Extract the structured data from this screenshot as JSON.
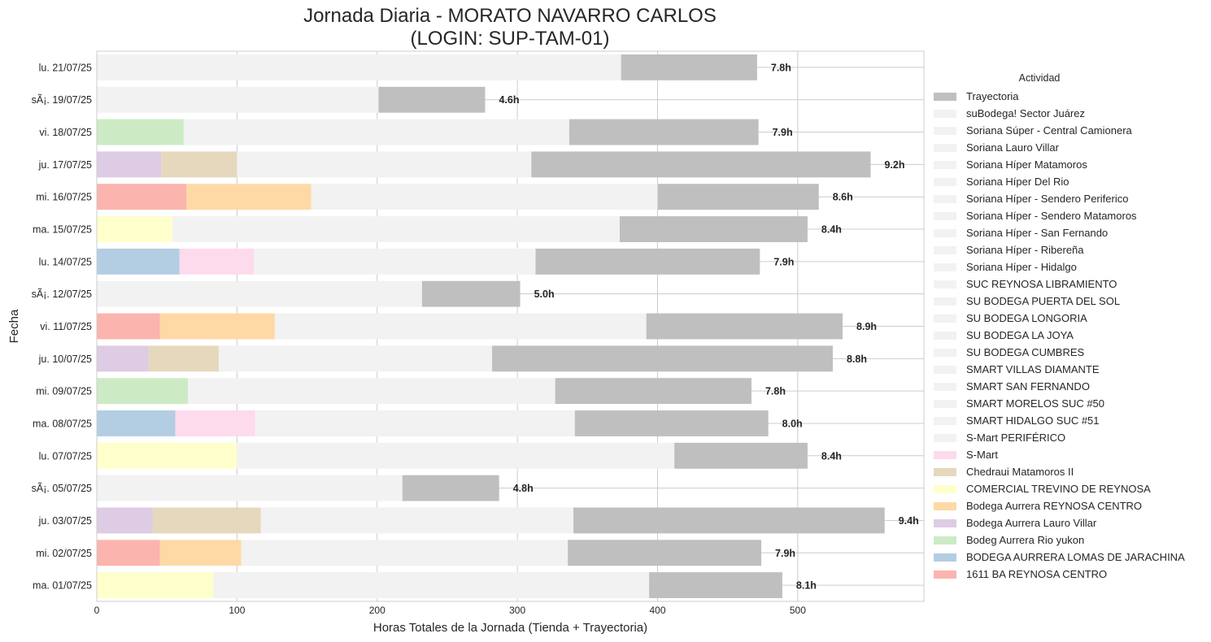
{
  "chart_data": {
    "type": "bar",
    "orientation": "horizontal",
    "stacked": true,
    "title_line1": "Jornada Diaria - MORATO NAVARRO CARLOS",
    "title_line2": "(LOGIN: SUP-TAM-01)",
    "xlabel": "Horas Totales de la Jornada (Tienda + Trayectoria)",
    "ylabel": "Fecha",
    "xlim": [
      0,
      590
    ],
    "xticks": [
      0,
      100,
      200,
      300,
      400,
      500
    ],
    "grid": true,
    "legend_position": "right",
    "legend_title": "Actividad",
    "categories": [
      "lu. 21/07/25",
      "sÃ¡. 19/07/25",
      "vi. 18/07/25",
      "ju. 17/07/25",
      "mi. 16/07/25",
      "ma. 15/07/25",
      "lu. 14/07/25",
      "sÃ¡. 12/07/25",
      "vi. 11/07/25",
      "ju. 10/07/25",
      "mi. 09/07/25",
      "ma. 08/07/25",
      "lu. 07/07/25",
      "sÃ¡. 05/07/25",
      "ju. 03/07/25",
      "mi. 02/07/25",
      "ma. 01/07/25"
    ],
    "series": [
      {
        "name": "Trayectoria",
        "color": "#bfbfbf"
      },
      {
        "name": "suBodega! Sector Juárez",
        "color": "#f2f2f2"
      },
      {
        "name": "Soriana Súper - Central Camionera",
        "color": "#f2f2f2"
      },
      {
        "name": "Soriana Lauro Villar",
        "color": "#f2f2f2"
      },
      {
        "name": "Soriana Híper Matamoros",
        "color": "#f2f2f2"
      },
      {
        "name": "Soriana Híper Del Rio",
        "color": "#f2f2f2"
      },
      {
        "name": "Soriana Híper - Sendero Periferico",
        "color": "#f2f2f2"
      },
      {
        "name": "Soriana Híper - Sendero Matamoros",
        "color": "#f2f2f2"
      },
      {
        "name": "Soriana Híper - San Fernando",
        "color": "#f2f2f2"
      },
      {
        "name": "Soriana Híper - Ribereña",
        "color": "#f2f2f2"
      },
      {
        "name": "Soriana Híper - Hidalgo",
        "color": "#f2f2f2"
      },
      {
        "name": "SUC REYNOSA LIBRAMIENTO",
        "color": "#f2f2f2"
      },
      {
        "name": "SU BODEGA PUERTA DEL SOL",
        "color": "#f2f2f2"
      },
      {
        "name": "SU BODEGA LONGORIA",
        "color": "#f2f2f2"
      },
      {
        "name": "SU BODEGA LA JOYA",
        "color": "#f2f2f2"
      },
      {
        "name": "SU BODEGA CUMBRES",
        "color": "#f2f2f2"
      },
      {
        "name": "SMART VILLAS DIAMANTE",
        "color": "#f2f2f2"
      },
      {
        "name": "SMART SAN FERNANDO",
        "color": "#f2f2f2"
      },
      {
        "name": "SMART MORELOS SUC #50",
        "color": "#f2f2f2"
      },
      {
        "name": "SMART HIDALGO SUC #51",
        "color": "#f2f2f2"
      },
      {
        "name": "S-Mart PERIFÉRICO",
        "color": "#f2f2f2"
      },
      {
        "name": "S-Mart",
        "color": "#fddaec"
      },
      {
        "name": "Chedraui Matamoros II",
        "color": "#e5d8bd"
      },
      {
        "name": "COMERCIAL TREVINO DE REYNOSA",
        "color": "#ffffcc"
      },
      {
        "name": "Bodega Aurrera REYNOSA CENTRO",
        "color": "#fed9a6"
      },
      {
        "name": "Bodega Aurrera Lauro Villar",
        "color": "#decbe4"
      },
      {
        "name": "Bodeg Aurrera Rio yukon",
        "color": "#ccebc5"
      },
      {
        "name": "BODEGA AURRERA LOMAS DE JARACHINA",
        "color": "#b3cde3"
      },
      {
        "name": "1611 BA REYNOSA CENTRO",
        "color": "#fbb4ae"
      }
    ],
    "bars": [
      {
        "date": "lu. 21/07/25",
        "segments": [
          {
            "series": "other stores",
            "value": 374
          },
          {
            "series": "Trayectoria",
            "value": 97
          }
        ],
        "label": "7.8h"
      },
      {
        "date": "sÃ¡. 19/07/25",
        "segments": [
          {
            "series": "other stores",
            "value": 201
          },
          {
            "series": "Trayectoria",
            "value": 76
          }
        ],
        "label": "4.6h"
      },
      {
        "date": "vi. 18/07/25",
        "segments": [
          {
            "series": "Bodeg Aurrera Rio yukon",
            "value": 62
          },
          {
            "series": "other stores",
            "value": 275
          },
          {
            "series": "Trayectoria",
            "value": 135
          }
        ],
        "label": "7.9h"
      },
      {
        "date": "ju. 17/07/25",
        "segments": [
          {
            "series": "Bodega Aurrera Lauro Villar",
            "value": 46
          },
          {
            "series": "Chedraui Matamoros II",
            "value": 54
          },
          {
            "series": "other stores",
            "value": 210
          },
          {
            "series": "Trayectoria",
            "value": 242
          }
        ],
        "label": "9.2h"
      },
      {
        "date": "mi. 16/07/25",
        "segments": [
          {
            "series": "1611 BA REYNOSA CENTRO",
            "value": 64
          },
          {
            "series": "Bodega Aurrera REYNOSA CENTRO",
            "value": 89
          },
          {
            "series": "other stores",
            "value": 247
          },
          {
            "series": "Trayectoria",
            "value": 115
          }
        ],
        "label": "8.6h"
      },
      {
        "date": "ma. 15/07/25",
        "segments": [
          {
            "series": "COMERCIAL TREVINO DE REYNOSA",
            "value": 54
          },
          {
            "series": "other stores",
            "value": 319
          },
          {
            "series": "Trayectoria",
            "value": 134
          }
        ],
        "label": "8.4h"
      },
      {
        "date": "lu. 14/07/25",
        "segments": [
          {
            "series": "BODEGA AURRERA LOMAS DE JARACHINA",
            "value": 59
          },
          {
            "series": "S-Mart",
            "value": 53
          },
          {
            "series": "other stores",
            "value": 201
          },
          {
            "series": "Trayectoria",
            "value": 160
          }
        ],
        "label": "7.9h"
      },
      {
        "date": "sÃ¡. 12/07/25",
        "segments": [
          {
            "series": "other stores",
            "value": 232
          },
          {
            "series": "Trayectoria",
            "value": 70
          }
        ],
        "label": "5.0h"
      },
      {
        "date": "vi. 11/07/25",
        "segments": [
          {
            "series": "1611 BA REYNOSA CENTRO",
            "value": 45
          },
          {
            "series": "Bodega Aurrera REYNOSA CENTRO",
            "value": 82
          },
          {
            "series": "other stores",
            "value": 265
          },
          {
            "series": "Trayectoria",
            "value": 140
          }
        ],
        "label": "8.9h"
      },
      {
        "date": "ju. 10/07/25",
        "segments": [
          {
            "series": "Bodega Aurrera Lauro Villar",
            "value": 37
          },
          {
            "series": "Chedraui Matamoros II",
            "value": 50
          },
          {
            "series": "other stores",
            "value": 195
          },
          {
            "series": "Trayectoria",
            "value": 243
          }
        ],
        "label": "8.8h"
      },
      {
        "date": "mi. 09/07/25",
        "segments": [
          {
            "series": "Bodeg Aurrera Rio yukon",
            "value": 65
          },
          {
            "series": "other stores",
            "value": 262
          },
          {
            "series": "Trayectoria",
            "value": 140
          }
        ],
        "label": "7.8h"
      },
      {
        "date": "ma. 08/07/25",
        "segments": [
          {
            "series": "BODEGA AURRERA LOMAS DE JARACHINA",
            "value": 56
          },
          {
            "series": "S-Mart",
            "value": 57
          },
          {
            "series": "other stores",
            "value": 228
          },
          {
            "series": "Trayectoria",
            "value": 138
          }
        ],
        "label": "8.0h"
      },
      {
        "date": "lu. 07/07/25",
        "segments": [
          {
            "series": "COMERCIAL TREVINO DE REYNOSA",
            "value": 100
          },
          {
            "series": "other stores",
            "value": 312
          },
          {
            "series": "Trayectoria",
            "value": 95
          }
        ],
        "label": "8.4h"
      },
      {
        "date": "sÃ¡. 05/07/25",
        "segments": [
          {
            "series": "other stores",
            "value": 218
          },
          {
            "series": "Trayectoria",
            "value": 69
          }
        ],
        "label": "4.8h"
      },
      {
        "date": "ju. 03/07/25",
        "segments": [
          {
            "series": "Bodega Aurrera Lauro Villar",
            "value": 40
          },
          {
            "series": "Chedraui Matamoros II",
            "value": 77
          },
          {
            "series": "other stores",
            "value": 223
          },
          {
            "series": "Trayectoria",
            "value": 222
          }
        ],
        "label": "9.4h"
      },
      {
        "date": "mi. 02/07/25",
        "segments": [
          {
            "series": "1611 BA REYNOSA CENTRO",
            "value": 45
          },
          {
            "series": "Bodega Aurrera REYNOSA CENTRO",
            "value": 58
          },
          {
            "series": "other stores",
            "value": 233
          },
          {
            "series": "Trayectoria",
            "value": 138
          }
        ],
        "label": "7.9h"
      },
      {
        "date": "ma. 01/07/25",
        "segments": [
          {
            "series": "COMERCIAL TREVINO DE REYNOSA",
            "value": 83
          },
          {
            "series": "other stores",
            "value": 311
          },
          {
            "series": "Trayectoria",
            "value": 95
          }
        ],
        "label": "8.1h"
      }
    ]
  },
  "segment_colors": {
    "other stores": "#f2f2f2"
  }
}
